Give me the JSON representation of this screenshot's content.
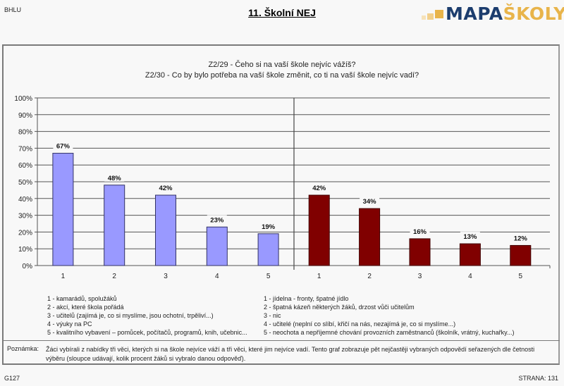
{
  "header": {
    "left_code": "BHLU",
    "title": "11. Školní NEJ",
    "logo": {
      "part1": "MAPA",
      "part2": "ŠKOLY",
      "color1": "#1c3d6e",
      "color2": "#e8b44a"
    }
  },
  "questions": {
    "q1": "Z2/29 - Čeho si na vaší škole nejvíc vážíš?",
    "q2": "Z2/30 - Co by bylo potřeba na vaší škole změnit, co ti na vaší škole nejvíc vadí?"
  },
  "chart_data": {
    "type": "bar",
    "title": "",
    "xlabel": "",
    "ylabel": "",
    "ylim": [
      0,
      100
    ],
    "yticks": [
      "0%",
      "10%",
      "20%",
      "30%",
      "40%",
      "50%",
      "60%",
      "70%",
      "80%",
      "90%",
      "100%"
    ],
    "grid": true,
    "series": [
      {
        "name": "Z2/29 - nejvíc vážíš",
        "color": "#9999ff",
        "categories": [
          "1",
          "2",
          "3",
          "4",
          "5"
        ],
        "values": [
          67,
          48,
          42,
          23,
          19
        ],
        "labels": [
          "67%",
          "48%",
          "42%",
          "23%",
          "19%"
        ]
      },
      {
        "name": "Z2/30 - nejvíc vadí",
        "color": "#800000",
        "categories": [
          "1",
          "2",
          "3",
          "4",
          "5"
        ],
        "values": [
          42,
          34,
          16,
          13,
          12
        ],
        "labels": [
          "42%",
          "34%",
          "16%",
          "13%",
          "12%"
        ]
      }
    ]
  },
  "legend": {
    "left": [
      "1 - kamarádů, spolužáků",
      "2 - akcí, které škola pořádá",
      "3 - učitelů (zajímá je, co si myslíme, jsou ochotní, trpěliví...)",
      "4 - výuky na PC",
      "5 - kvalitního vybavení – pomůcek, počítačů, programů, knih, učebnic..."
    ],
    "right": [
      "1 - jídelna - fronty, špatné jídlo",
      "2 - špatná kázeň některých žáků, drzost vůči učitelům",
      "3 - nic",
      "4 - učitelé (neplní co slíbí, křičí na nás, nezajímá je, co si myslíme...)",
      "5 - neochota a nepříjemné chování provozních zaměstnanců (školník, vrátný, kuchařky...)"
    ]
  },
  "note": {
    "label": "Poznámka:",
    "text": "Žáci vybírali z nabídky tři věci, kterých si na škole nejvíce váží a tři věci, které jim nejvíce vadí. Tento graf zobrazuje pět nejčastěji vybraných odpovědí seřazených dle četnosti výběru (sloupce udávají, kolik procent žáků si vybralo danou odpověď)."
  },
  "footer": {
    "left": "G127",
    "right": "STRANA: 131"
  }
}
